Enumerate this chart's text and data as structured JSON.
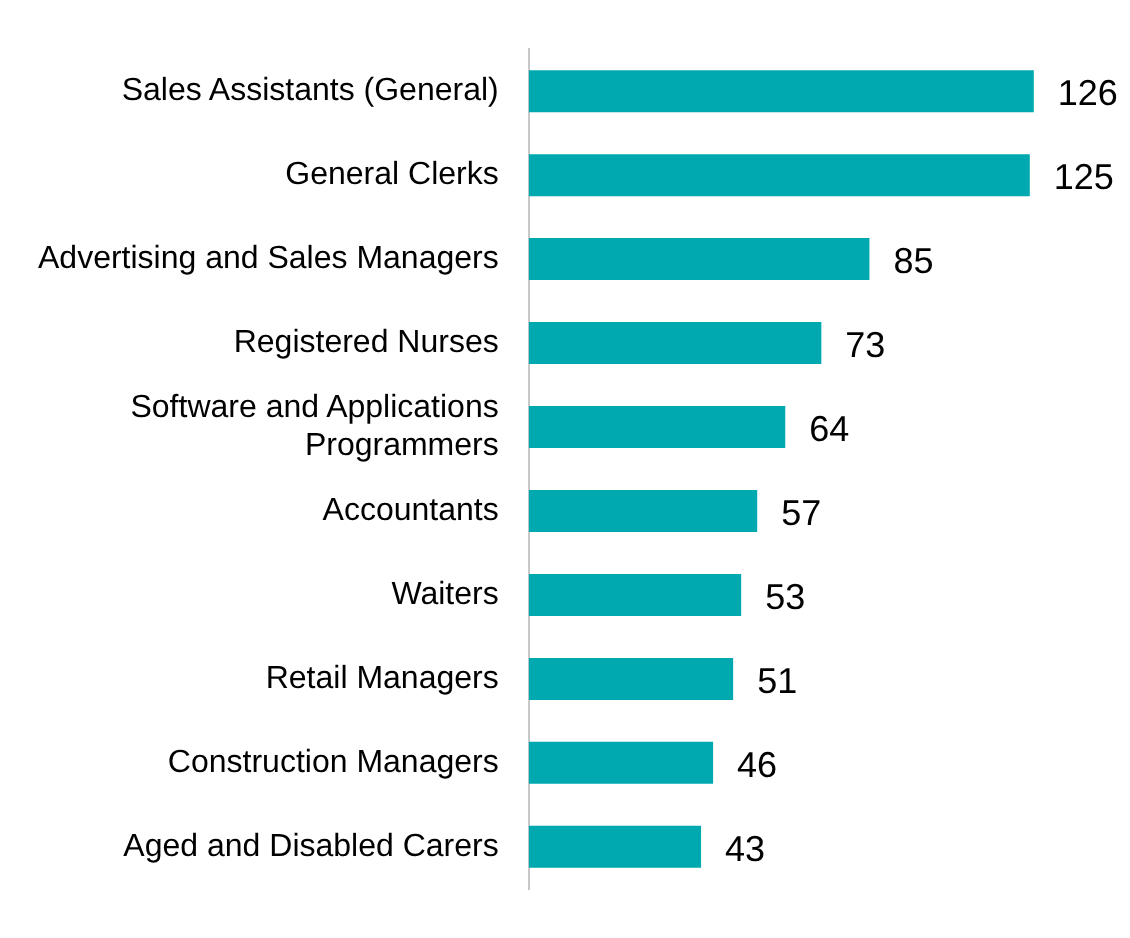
{
  "chart_data": {
    "type": "bar",
    "orientation": "horizontal",
    "data_labels": true,
    "categories": [
      "Sales Assistants (General)",
      "General Clerks",
      "Advertising and Sales Managers",
      "Registered Nurses",
      "Software and Applications Programmers",
      "Accountants",
      "Waiters",
      "Retail Managers",
      "Construction Managers",
      "Aged and Disabled Carers"
    ],
    "values": [
      126,
      125,
      85,
      73,
      64,
      57,
      53,
      51,
      46,
      43
    ],
    "color": "#00a9b0"
  }
}
